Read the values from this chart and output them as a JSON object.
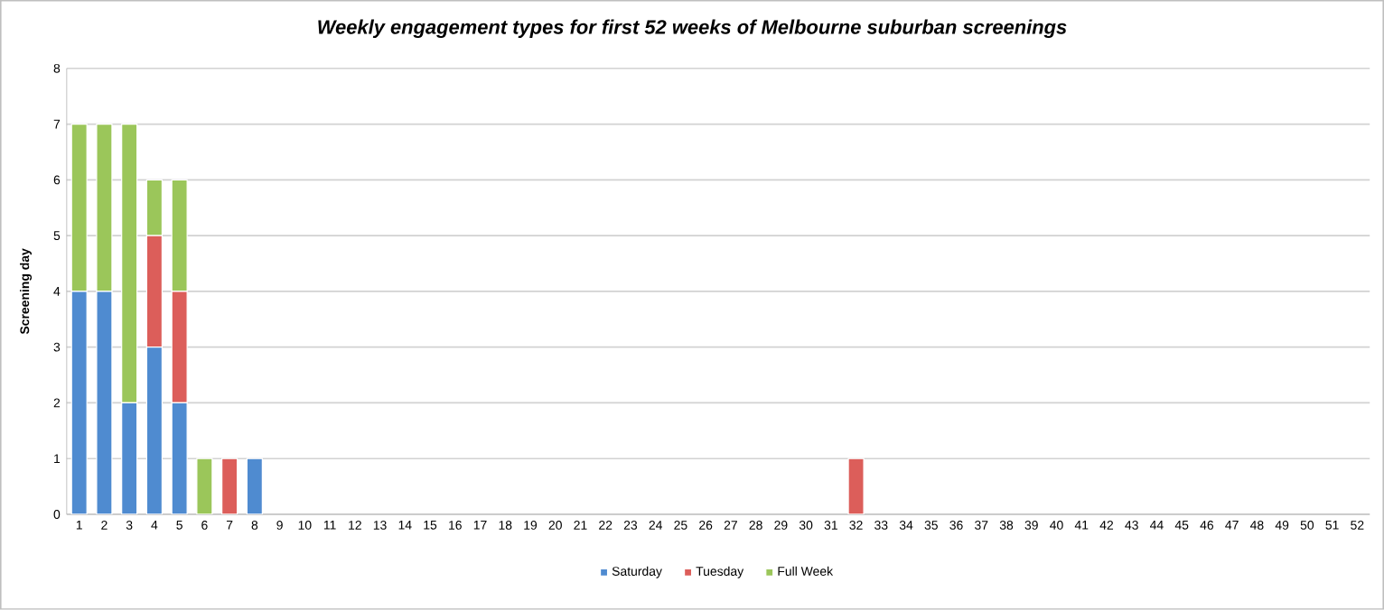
{
  "chart_data": {
    "type": "bar",
    "title": "Weekly engagement types for first 52 weeks of Melbourne suburban screenings",
    "ylabel": "Screening day",
    "categories": [
      "1",
      "2",
      "3",
      "4",
      "5",
      "6",
      "7",
      "8",
      "9",
      "10",
      "11",
      "12",
      "13",
      "14",
      "15",
      "16",
      "17",
      "18",
      "19",
      "20",
      "21",
      "22",
      "23",
      "24",
      "25",
      "26",
      "27",
      "28",
      "29",
      "30",
      "31",
      "32",
      "33",
      "34",
      "35",
      "36",
      "37",
      "38",
      "39",
      "40",
      "41",
      "42",
      "43",
      "44",
      "45",
      "46",
      "47",
      "48",
      "49",
      "50",
      "51",
      "52"
    ],
    "stacked": true,
    "ylim": [
      0,
      8
    ],
    "yticks": [
      0,
      1,
      2,
      3,
      4,
      5,
      6,
      7,
      8
    ],
    "grid": "y",
    "legend": "bottom",
    "series": [
      {
        "name": "Saturday",
        "color": "#4f8bd0",
        "values": [
          4,
          4,
          2,
          3,
          2,
          0,
          0,
          1,
          0,
          0,
          0,
          0,
          0,
          0,
          0,
          0,
          0,
          0,
          0,
          0,
          0,
          0,
          0,
          0,
          0,
          0,
          0,
          0,
          0,
          0,
          0,
          0,
          0,
          0,
          0,
          0,
          0,
          0,
          0,
          0,
          0,
          0,
          0,
          0,
          0,
          0,
          0,
          0,
          0,
          0,
          0,
          0
        ]
      },
      {
        "name": "Tuesday",
        "color": "#dc5e5a",
        "values": [
          0,
          0,
          0,
          2,
          2,
          0,
          1,
          0,
          0,
          0,
          0,
          0,
          0,
          0,
          0,
          0,
          0,
          0,
          0,
          0,
          0,
          0,
          0,
          0,
          0,
          0,
          0,
          0,
          0,
          0,
          0,
          1,
          0,
          0,
          0,
          0,
          0,
          0,
          0,
          0,
          0,
          0,
          0,
          0,
          0,
          0,
          0,
          0,
          0,
          0,
          0,
          0
        ]
      },
      {
        "name": "Full Week",
        "color": "#9bc65a",
        "values": [
          3,
          3,
          5,
          1,
          2,
          1,
          0,
          0,
          0,
          0,
          0,
          0,
          0,
          0,
          0,
          0,
          0,
          0,
          0,
          0,
          0,
          0,
          0,
          0,
          0,
          0,
          0,
          0,
          0,
          0,
          0,
          0,
          0,
          0,
          0,
          0,
          0,
          0,
          0,
          0,
          0,
          0,
          0,
          0,
          0,
          0,
          0,
          0,
          0,
          0,
          0,
          0
        ]
      }
    ]
  }
}
